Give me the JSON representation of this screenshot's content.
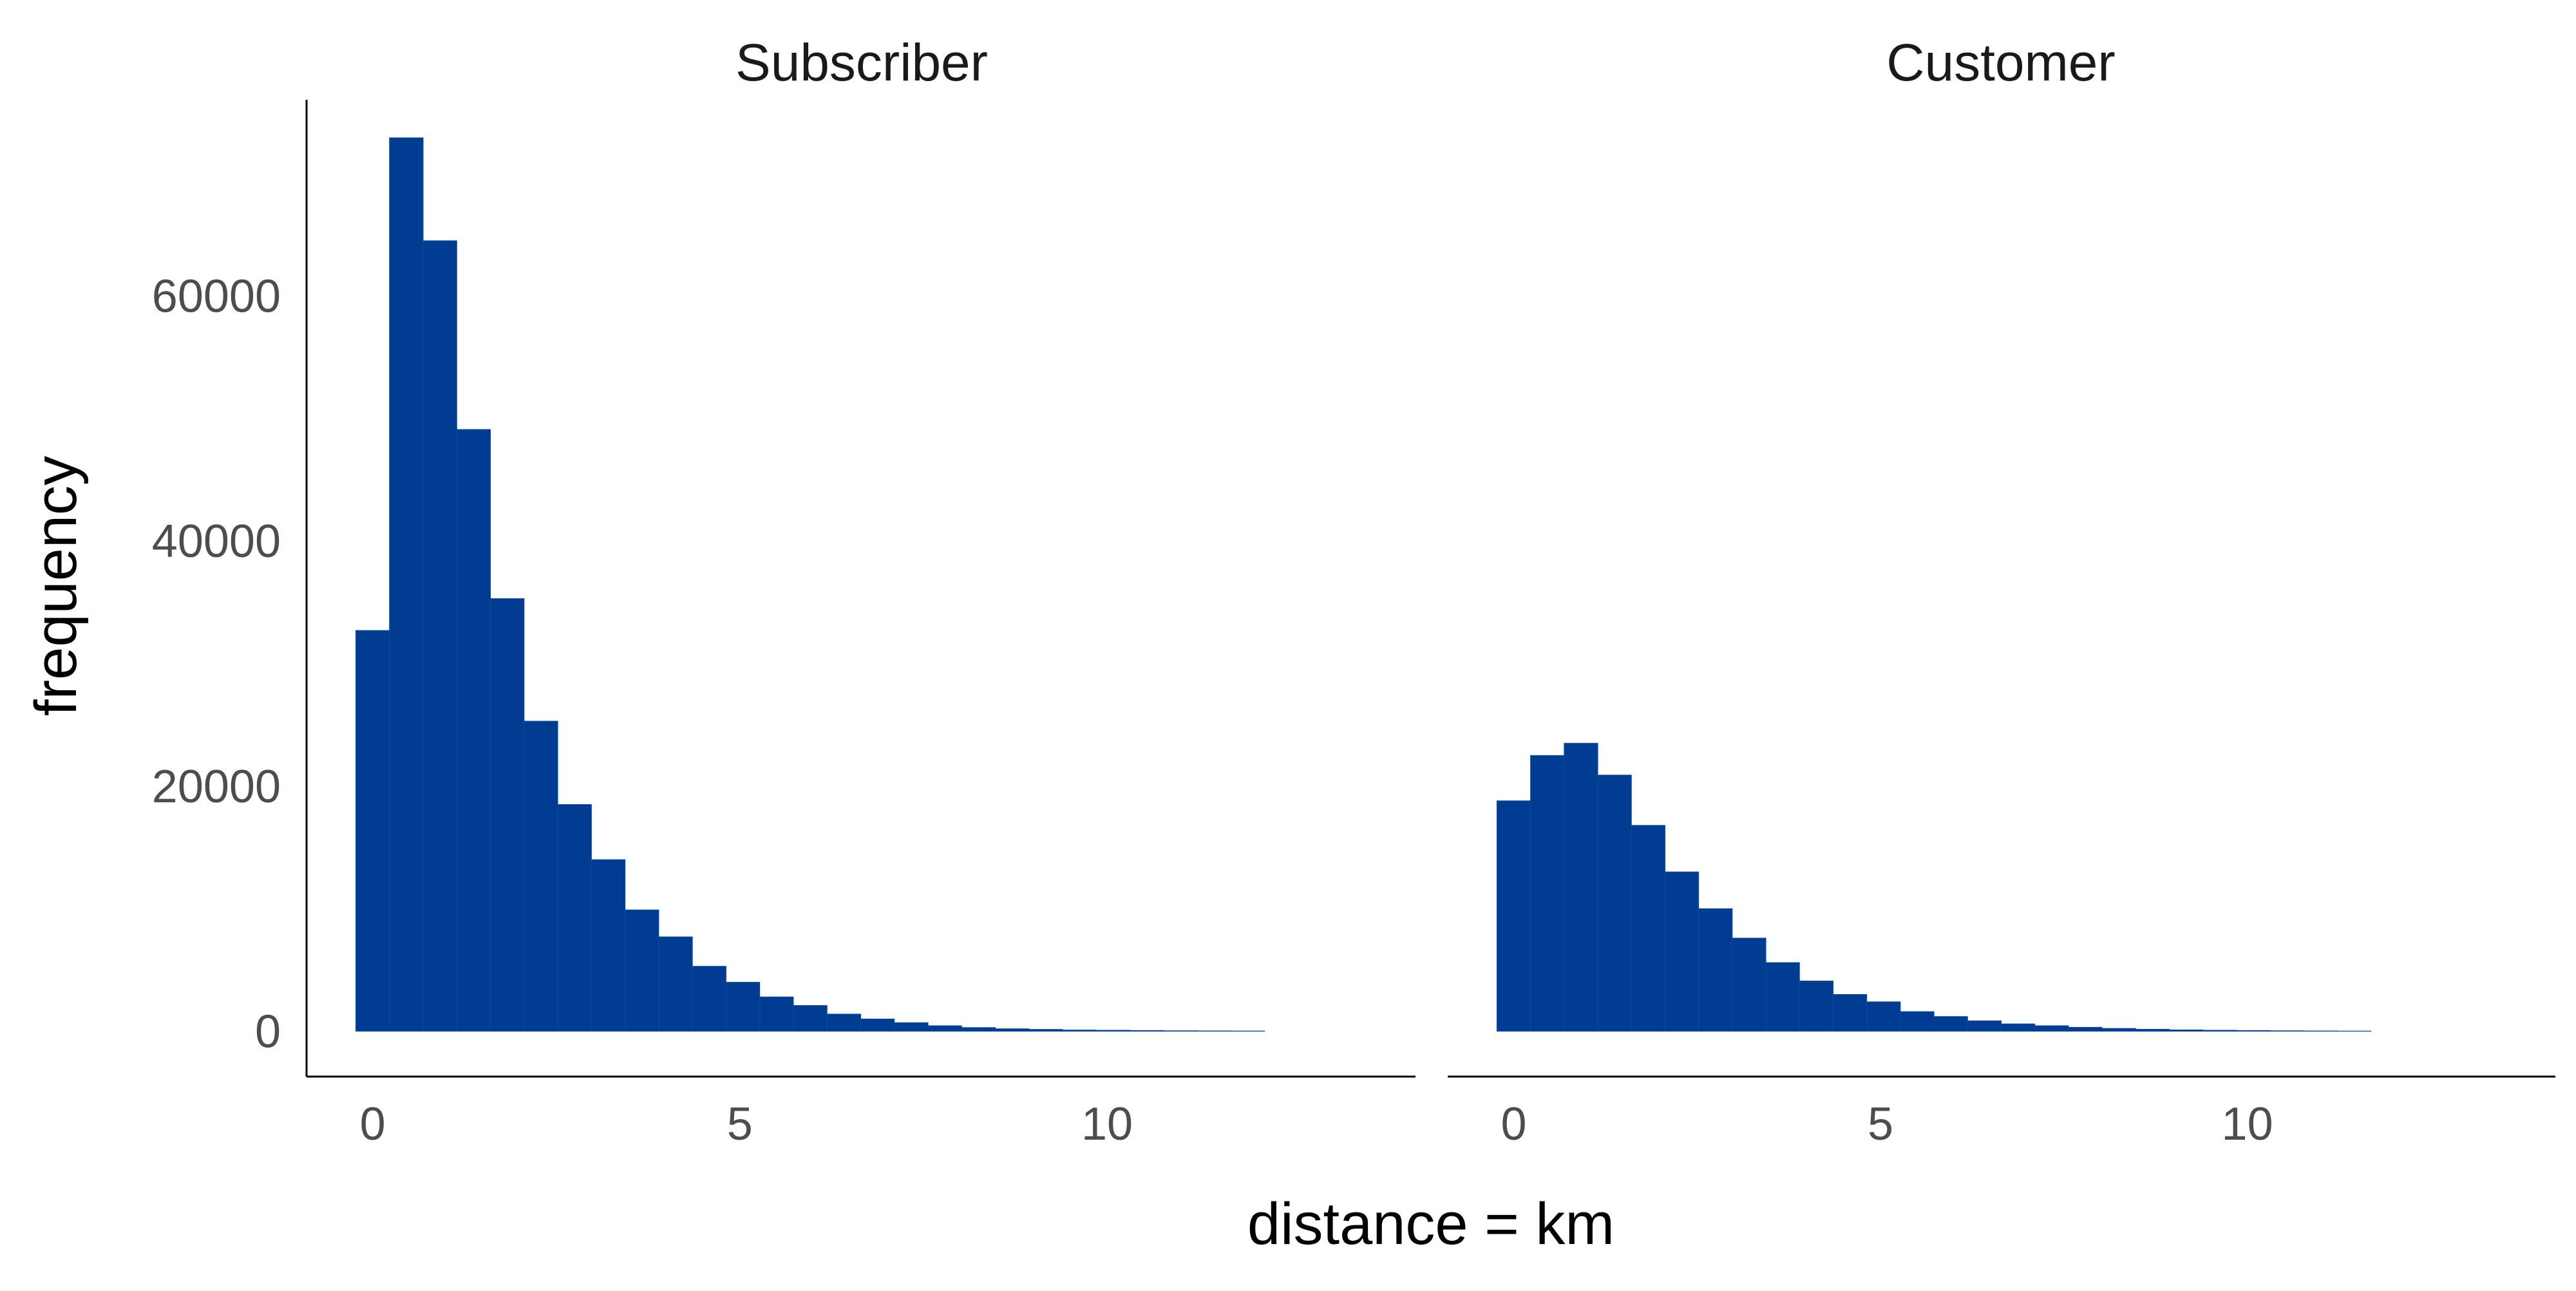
{
  "colors": {
    "bar_fill": "#003C91",
    "bar_edge": "#0B4A9E",
    "axis_line": "#000000",
    "tick_text": "#4d4d4d",
    "background": "#ffffff"
  },
  "chart_data": {
    "type": "bar",
    "layout": "faceted histogram, two panels side by side sharing the y axis",
    "xlabel": "distance = km",
    "ylabel": "frequency",
    "grid": false,
    "legend": "none",
    "xlim": [
      -0.9,
      14.2
    ],
    "ylim": [
      -3700,
      76000
    ],
    "x_ticks": [
      0,
      5,
      10
    ],
    "x_tick_labels": [
      "0",
      "5",
      "10"
    ],
    "y_ticks": [
      0,
      20000,
      40000,
      60000
    ],
    "y_tick_labels": [
      "0",
      "20000",
      "40000",
      "60000"
    ],
    "bin_width": 0.4583,
    "bin_start": -0.229,
    "panels": [
      {
        "name": "Subscriber",
        "values": [
          32700,
          72900,
          64500,
          49100,
          35300,
          25300,
          18500,
          14000,
          9900,
          7700,
          5300,
          4000,
          2800,
          2100,
          1400,
          1000,
          700,
          450,
          300,
          200,
          150,
          100,
          80,
          60,
          40,
          30,
          20
        ]
      },
      {
        "name": "Customer",
        "values": [
          18800,
          22500,
          23500,
          20900,
          16800,
          13000,
          10000,
          7600,
          5600,
          4100,
          3000,
          2400,
          1600,
          1200,
          850,
          600,
          450,
          320,
          230,
          160,
          110,
          80,
          60,
          40,
          25,
          15
        ]
      }
    ]
  }
}
